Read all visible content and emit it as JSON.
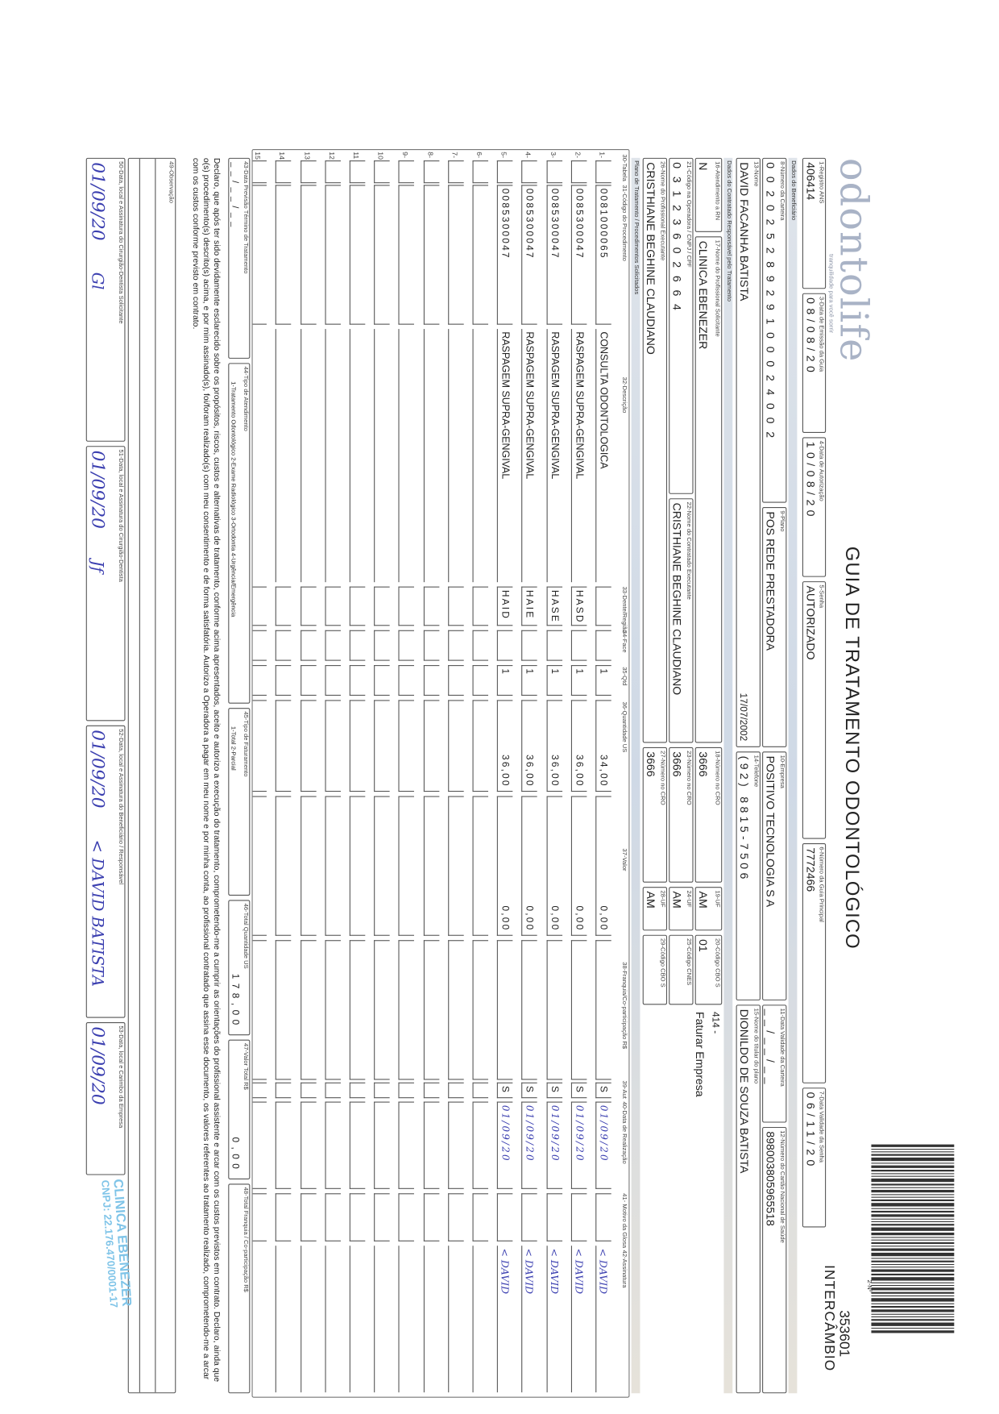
{
  "logo": {
    "brand": "odontolife",
    "tagline": "tranquilidade para você sorrir"
  },
  "title": "GUIA DE TRATAMENTO ODONTOLÓGICO",
  "guide_number": {
    "label": "2-Nº",
    "value": "353601",
    "type": "INTERCÂMBIO"
  },
  "header": {
    "registro_ans": {
      "label": "1-Registro ANS",
      "value": "406414"
    },
    "data_emissao": {
      "label": "3-Data de Emissão da Guia",
      "value": "08/08/20"
    },
    "data_autorizacao": {
      "label": "4-Data de Autorização",
      "value": "10/08/20"
    },
    "senha": {
      "label": "5-Senha",
      "value": "AUTORIZADO"
    },
    "guia_principal": {
      "label": "6-Número da Guia Principal",
      "value": "7772466"
    },
    "validade_senha": {
      "label": "7-Data Validade da Senha",
      "value": "06/11/20"
    }
  },
  "beneficiario": {
    "section": "Dados do Beneficiário",
    "carteira": {
      "label": "8-Número da Carteira",
      "value": "00202528929100024002"
    },
    "plano": {
      "label": "9-Plano",
      "value": "POS REDE PRESTADORA"
    },
    "empresa": {
      "label": "10-Empresa",
      "value": "POSITIVO TECNOLOGIA S A"
    },
    "validade_carteira": {
      "label": "11-Data Validade da Carteira",
      "value": "__/__/__"
    },
    "cns": {
      "label": "12-Número do Cartão Nacional de Saúde",
      "value": "898003805965518"
    },
    "nome": {
      "label": "13-Nome",
      "value": "DAVID FACANHA BATISTA",
      "birth": "17/07/2002"
    },
    "telefone": {
      "label": "14-Telefone",
      "value": "(92) 8815-7506"
    },
    "titular": {
      "label": "15-Nome do titular do plano",
      "value": "DIONILDO DE SOUZA BATISTA"
    }
  },
  "contratado": {
    "section": "Dados do Contratado Responsável pelo Tratamento",
    "rn": {
      "label": "16-Atendimento a RN",
      "value": "N"
    },
    "solicitante": {
      "label": "17-Nome do Profissional Solicitante",
      "value": "CLINICA EBENEZER"
    },
    "cro1": {
      "label": "18-Número no CRO",
      "value": "3666"
    },
    "uf1": {
      "label": "19-UF",
      "value": "AM"
    },
    "cbo1": {
      "label": "20-Código CBO S",
      "value": "01"
    },
    "billing_code": "414 -",
    "billing_text": "Faturar Empresa",
    "codigo_operadora": {
      "label": "21-Código na Operadora / CNPJ / CPF",
      "value": "03123602664"
    },
    "contratado_exec": {
      "label": "22-Nome do Contratado Executante",
      "value": "CRISTHIANE BEGHINE CLAUDIANO"
    },
    "cro2": {
      "label": "23-Número no CRO",
      "value": "3666"
    },
    "uf2": {
      "label": "24-UF",
      "value": "AM"
    },
    "cnes": {
      "label": "25-Código CNES",
      "value": ""
    },
    "prof_exec": {
      "label": "26-Nome do Profissional Executante",
      "value": "CRISTHIANE BEGHINE CLAUDIANO"
    },
    "cro3": {
      "label": "27-Número no CRO",
      "value": "3666"
    },
    "uf3": {
      "label": "28-UF",
      "value": "AM"
    },
    "cbo3": {
      "label": "29-Código CBO S",
      "value": ""
    }
  },
  "procedures": {
    "section": "Plano de Tratamento / Procedimentos Solicitados",
    "headers": [
      "30-Tabela",
      "31-Código do Procedimento",
      "32-Descrição",
      "33-Dente/Região",
      "34-Face",
      "35-Qtd",
      "36-Quantidade US",
      "37-Valor",
      "38-Franquia/Co-participação R$",
      "39-Aut",
      "40-Data de Realização",
      "41- Motivo da Glosa",
      "42-Assinatura"
    ],
    "rows": [
      {
        "n": "1-",
        "tabela": "",
        "codigo": "0081000065",
        "descricao": "CONSULTA ODONTOLOGICA",
        "dente": "",
        "face": "",
        "qtd": "1",
        "us": "34,00",
        "valor": "0,00",
        "franquia": "",
        "aut": "S",
        "data": "01/09/20",
        "glosa": "",
        "assinatura": "< DAVID"
      },
      {
        "n": "2-",
        "tabela": "",
        "codigo": "0085300047",
        "descricao": "RASPAGEM SUPRA-GENGIVAL",
        "dente": "HASD",
        "face": "",
        "qtd": "1",
        "us": "36,00",
        "valor": "0,00",
        "franquia": "",
        "aut": "S",
        "data": "01/09/20",
        "glosa": "",
        "assinatura": "< DAVID"
      },
      {
        "n": "3-",
        "tabela": "",
        "codigo": "0085300047",
        "descricao": "RASPAGEM SUPRA-GENGIVAL",
        "dente": "HASE",
        "face": "",
        "qtd": "1",
        "us": "36,00",
        "valor": "0,00",
        "franquia": "",
        "aut": "S",
        "data": "01/09/20",
        "glosa": "",
        "assinatura": "< DAVID"
      },
      {
        "n": "4-",
        "tabela": "",
        "codigo": "0085300047",
        "descricao": "RASPAGEM SUPRA-GENGIVAL",
        "dente": "HAIE",
        "face": "",
        "qtd": "1",
        "us": "36,00",
        "valor": "0,00",
        "franquia": "",
        "aut": "S",
        "data": "01/09/20",
        "glosa": "",
        "assinatura": "< DAVID"
      },
      {
        "n": "5-",
        "tabela": "",
        "codigo": "0085300047",
        "descricao": "RASPAGEM SUPRA-GENGIVAL",
        "dente": "HAID",
        "face": "",
        "qtd": "1",
        "us": "36,00",
        "valor": "0,00",
        "franquia": "",
        "aut": "S",
        "data": "01/09/20",
        "glosa": "",
        "assinatura": "< DAVID"
      },
      {
        "n": "6-"
      },
      {
        "n": "7-"
      },
      {
        "n": "8-"
      },
      {
        "n": "9-"
      },
      {
        "n": "10"
      },
      {
        "n": "11"
      },
      {
        "n": "12"
      },
      {
        "n": "13"
      },
      {
        "n": "14"
      },
      {
        "n": "15"
      }
    ]
  },
  "totals": {
    "previsao": {
      "label": "43-Data Previsão Término de Tratamento",
      "value": "__/__/__"
    },
    "tipo_atendimento": {
      "label": "44-Tipo de Atendimento",
      "value": "1-Tratamento Odontológico  2-Exame Radiológico  3-Ortodontia  4-Urgência/Emergência"
    },
    "tipo_faturamento": {
      "label": "45-Tipo de Faturamento",
      "value": "1-Total  2-Parcial"
    },
    "total_us": {
      "label": "46-Total Quantidade US",
      "value": "178,00"
    },
    "valor_total": {
      "label": "47-Valor Total R$",
      "value": "0,00"
    },
    "total_franquia": {
      "label": "48-Total Franquia / Co-participação R$",
      "value": ""
    }
  },
  "declaration": "Declaro, que após ter sido devidamente esclarecido sobre os propósitos, riscos, custos e alternativas de tratamento, conforme acima apresentados, aceito e autorizo a execução do tratamento, comprometendo-me a cumprir as orientações do profissional assistente e arcar com os custos previstos em contrato. Declaro, ainda que o(s) procedimento(s) descrito(s) acima, e por mim assinado(s), foi/foram realizado(s) com meu consentimento e de forma satisfatória. Autorizo a Operadora a pagar em meu nome e por minha conta, ao profissional contratado que assina esse documento, os valores referentes ao tratamento realizado, comprometendo-me a arcar com os custos conforme previsto em contrato.",
  "observacao": {
    "label": "49-Observação",
    "value": ""
  },
  "signatures": [
    {
      "label": "50-Data, local e Assinatura do Cirurgião-Dentista Solicitante",
      "date": "01/09/20",
      "sign": "Gl"
    },
    {
      "label": "51-Data, local e Assinatura do Cirurgião-Dentista",
      "date": "01/09/20",
      "sign": "Jf"
    },
    {
      "label": "52-Data, local e Assinatura do Beneficiário / Responsável",
      "date": "01/09/20",
      "sign": "< DAVID BATISTA"
    },
    {
      "label": "53-Data, local e Carimbo da Empresa",
      "date": "01/09/20",
      "sign": ""
    }
  ],
  "stamp": {
    "line1": "CLINICA EBENEZER",
    "line2": "CNPJ: 22.176.470/0001-17"
  },
  "colors": {
    "pen": "#3b3fb0",
    "stamp": "#7fc4e8",
    "section_bar": "#cfd9e6"
  }
}
